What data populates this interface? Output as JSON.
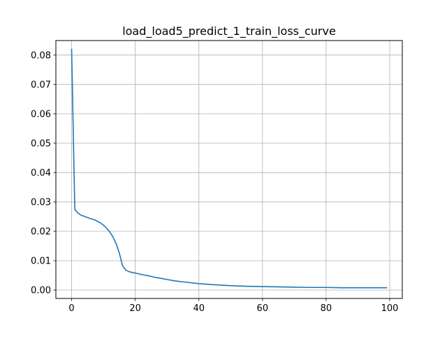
{
  "chart_data": {
    "type": "line",
    "title": "load_load5_predict_1_train_loss_curve",
    "xlabel": "",
    "ylabel": "",
    "xlim": [
      -4.95,
      103.95
    ],
    "ylim": [
      -0.00285,
      0.08495
    ],
    "grid": true,
    "x_ticks": [
      0,
      20,
      40,
      60,
      80,
      100
    ],
    "y_ticks": [
      0.0,
      0.01,
      0.02,
      0.03,
      0.04,
      0.05,
      0.06,
      0.07,
      0.08
    ],
    "x_tick_labels": [
      "0",
      "20",
      "40",
      "60",
      "80",
      "100"
    ],
    "y_tick_labels": [
      "0.00",
      "0.01",
      "0.02",
      "0.03",
      "0.04",
      "0.05",
      "0.06",
      "0.07",
      "0.08"
    ],
    "series": [
      {
        "color": "#1f77b4",
        "x": [
          0,
          1,
          2,
          3,
          4,
          5,
          6,
          7,
          8,
          9,
          10,
          11,
          12,
          13,
          14,
          15,
          16,
          17,
          18,
          19,
          20,
          22,
          24,
          26,
          28,
          30,
          32,
          35,
          40,
          45,
          50,
          55,
          60,
          65,
          70,
          75,
          80,
          85,
          90,
          95,
          99
        ],
        "y": [
          0.0819,
          0.0275,
          0.0262,
          0.0255,
          0.0251,
          0.0247,
          0.0243,
          0.024,
          0.0235,
          0.0229,
          0.0221,
          0.0211,
          0.0198,
          0.0181,
          0.0158,
          0.0126,
          0.0083,
          0.0068,
          0.0063,
          0.006,
          0.0058,
          0.0053,
          0.0049,
          0.0044,
          0.004,
          0.0036,
          0.0032,
          0.0028,
          0.0022,
          0.0018,
          0.0015,
          0.0013,
          0.0012,
          0.0011,
          0.001,
          0.0009,
          0.0009,
          0.0008,
          0.0008,
          0.0008,
          0.0008
        ]
      }
    ]
  }
}
